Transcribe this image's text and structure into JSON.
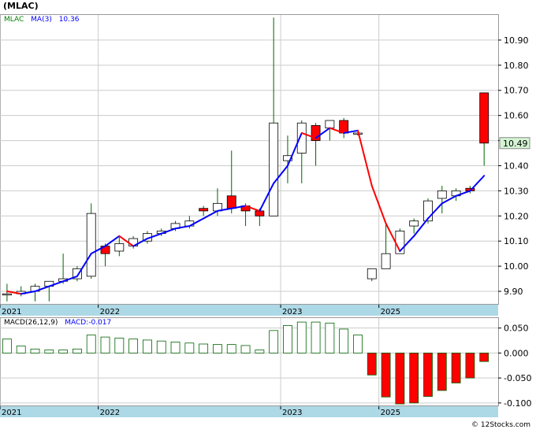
{
  "title": "(MLAC)",
  "watermark": "© 12Stocks.com",
  "colors": {
    "up_fill": "#ffffff",
    "down_fill": "#ff0000",
    "candle_outline": "#000000",
    "wick": "#006400",
    "ma_up": "#0000ff",
    "ma_down": "#ff0000",
    "macd_pos": "#ffffff",
    "macd_neg": "#ff0000",
    "macd_outline": "#006400",
    "axis_band": "#add8e6",
    "grid": "#cccccc",
    "legend_symbol": "#008000",
    "legend_ma": "#0000ff",
    "price_label_bg": "#d4f4d4"
  },
  "chart_data": [
    {
      "type": "candlestick",
      "legend": {
        "symbol": "MLAC",
        "ma_label": "MA(3)",
        "ma_value": "10.36"
      },
      "ylim": [
        9.85,
        11.0
      ],
      "y_ticks": [
        "10.90",
        "10.80",
        "10.70",
        "10.60",
        "10.50",
        "10.40",
        "10.30",
        "10.20",
        "10.10",
        "10.00",
        "9.90"
      ],
      "x_tick_labels": [
        "2021",
        "2022",
        "2023",
        "2025"
      ],
      "x_tick_index": [
        0,
        7,
        20,
        27
      ],
      "last_price": "10.49",
      "grid": true,
      "candles": [
        {
          "o": 9.89,
          "h": 9.93,
          "l": 9.86,
          "c": 9.89
        },
        {
          "o": 9.89,
          "h": 9.92,
          "l": 9.88,
          "c": 9.9
        },
        {
          "o": 9.9,
          "h": 9.93,
          "l": 9.86,
          "c": 9.92
        },
        {
          "o": 9.92,
          "h": 9.94,
          "l": 9.86,
          "c": 9.94
        },
        {
          "o": 9.94,
          "h": 10.05,
          "l": 9.93,
          "c": 9.95
        },
        {
          "o": 9.95,
          "h": 10.0,
          "l": 9.94,
          "c": 9.99
        },
        {
          "o": 9.96,
          "h": 10.25,
          "l": 9.95,
          "c": 10.21
        },
        {
          "o": 10.08,
          "h": 10.09,
          "l": 10.0,
          "c": 10.05
        },
        {
          "o": 10.06,
          "h": 10.12,
          "l": 10.04,
          "c": 10.09
        },
        {
          "o": 10.08,
          "h": 10.12,
          "l": 10.07,
          "c": 10.11
        },
        {
          "o": 10.1,
          "h": 10.14,
          "l": 10.09,
          "c": 10.13
        },
        {
          "o": 10.13,
          "h": 10.15,
          "l": 10.12,
          "c": 10.14
        },
        {
          "o": 10.15,
          "h": 10.18,
          "l": 10.14,
          "c": 10.17
        },
        {
          "o": 10.16,
          "h": 10.2,
          "l": 10.15,
          "c": 10.18
        },
        {
          "o": 10.23,
          "h": 10.24,
          "l": 10.2,
          "c": 10.22
        },
        {
          "o": 10.22,
          "h": 10.31,
          "l": 10.2,
          "c": 10.25
        },
        {
          "o": 10.28,
          "h": 10.46,
          "l": 10.21,
          "c": 10.23
        },
        {
          "o": 10.24,
          "h": 10.25,
          "l": 10.16,
          "c": 10.22
        },
        {
          "o": 10.22,
          "h": 10.23,
          "l": 10.16,
          "c": 10.2
        },
        {
          "o": 10.2,
          "h": 10.99,
          "l": 10.2,
          "c": 10.57
        },
        {
          "o": 10.42,
          "h": 10.52,
          "l": 10.33,
          "c": 10.44
        },
        {
          "o": 10.45,
          "h": 10.58,
          "l": 10.33,
          "c": 10.57
        },
        {
          "o": 10.56,
          "h": 10.57,
          "l": 10.4,
          "c": 10.5
        },
        {
          "o": 10.55,
          "h": 10.58,
          "l": 10.5,
          "c": 10.58
        },
        {
          "o": 10.58,
          "h": 10.59,
          "l": 10.51,
          "c": 10.53
        },
        {
          "o": 10.53,
          "h": 10.54,
          "l": 10.52,
          "c": 10.53
        },
        {
          "o": 9.95,
          "h": 9.99,
          "l": 9.94,
          "c": 9.99
        },
        {
          "o": 9.99,
          "h": 10.17,
          "l": 9.99,
          "c": 10.05
        },
        {
          "o": 10.05,
          "h": 10.15,
          "l": 10.05,
          "c": 10.14
        },
        {
          "o": 10.16,
          "h": 10.19,
          "l": 10.13,
          "c": 10.18
        },
        {
          "o": 10.18,
          "h": 10.27,
          "l": 10.17,
          "c": 10.26
        },
        {
          "o": 10.27,
          "h": 10.32,
          "l": 10.21,
          "c": 10.3
        },
        {
          "o": 10.28,
          "h": 10.31,
          "l": 10.26,
          "c": 10.3
        },
        {
          "o": 10.31,
          "h": 10.32,
          "l": 10.29,
          "c": 10.3
        },
        {
          "o": 10.69,
          "h": 10.69,
          "l": 10.4,
          "c": 10.49
        }
      ],
      "ma": [
        9.9,
        9.89,
        9.9,
        9.92,
        9.94,
        9.96,
        10.05,
        10.08,
        10.12,
        10.08,
        10.11,
        10.13,
        10.15,
        10.16,
        10.19,
        10.22,
        10.23,
        10.24,
        10.22,
        10.33,
        10.4,
        10.53,
        10.51,
        10.55,
        10.53,
        10.54,
        10.32,
        10.17,
        10.06,
        10.12,
        10.19,
        10.25,
        10.28,
        10.3,
        10.36
      ]
    },
    {
      "type": "bar",
      "legend": {
        "label": "MACD(26,12,9)",
        "value_label": "MACD:-0.017"
      },
      "ylim": [
        -0.105,
        0.07
      ],
      "y_ticks": [
        "0.050",
        "0.000",
        "-0.050",
        "-0.100"
      ],
      "x_tick_labels": [
        "2021",
        "2022",
        "2023",
        "2025"
      ],
      "x_tick_index": [
        0,
        7,
        20,
        27
      ],
      "values": [
        0.028,
        0.014,
        0.008,
        0.006,
        0.006,
        0.008,
        0.036,
        0.032,
        0.03,
        0.028,
        0.026,
        0.024,
        0.022,
        0.02,
        0.018,
        0.017,
        0.017,
        0.015,
        0.006,
        0.045,
        0.055,
        0.062,
        0.062,
        0.06,
        0.048,
        0.036,
        -0.044,
        -0.088,
        -0.102,
        -0.1,
        -0.087,
        -0.075,
        -0.06,
        -0.05,
        -0.017
      ]
    }
  ]
}
